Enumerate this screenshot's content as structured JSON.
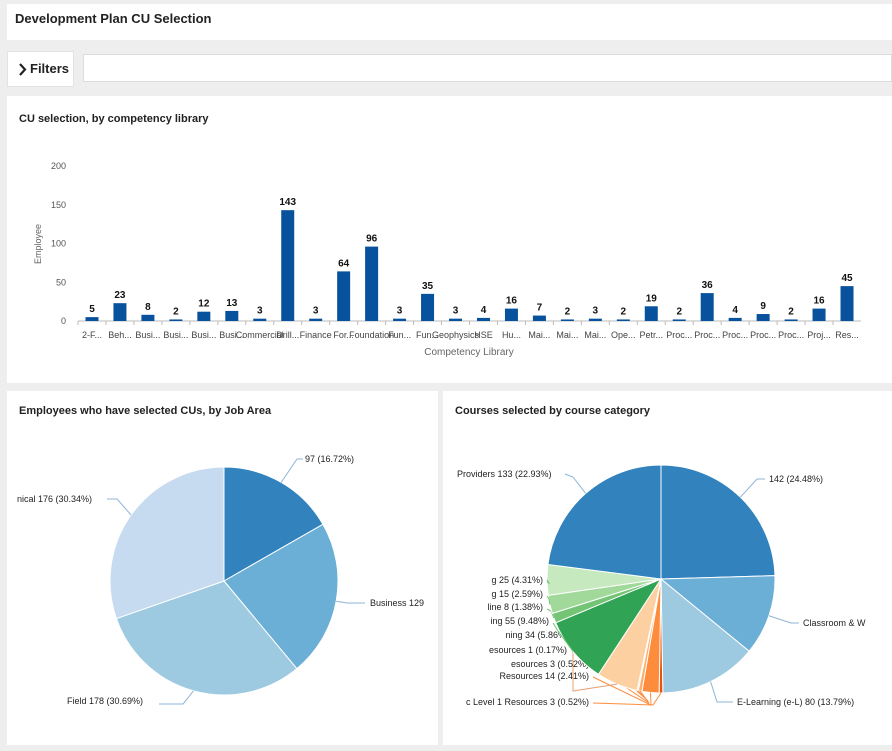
{
  "page": {
    "title": "Development Plan CU Selection"
  },
  "filters": {
    "label": "Filters",
    "placeholder": ""
  },
  "colors": {
    "bar": "#08519c",
    "panel_bg": "#ffffff",
    "page_bg": "#eeeeee"
  },
  "bar_panel": {
    "title": "CU selection, by competency library"
  },
  "job_area_panel": {
    "title": "Employees who have selected CUs, by Job Area"
  },
  "course_panel": {
    "title": "Courses selected by course category"
  },
  "chart_data": [
    {
      "type": "bar",
      "title": "CU selection, by competency library",
      "xlabel": "Competency Library",
      "ylabel": "Employee",
      "ylim": [
        0,
        200
      ],
      "yticks": [
        0,
        50,
        100,
        150,
        200
      ],
      "categories": [
        "2-F...",
        "Beh...",
        "Busi...",
        "Busi...",
        "Busi...",
        "Busi...",
        "Commercial",
        "Drill...",
        "Finance",
        "For...",
        "Foundation",
        "Fun...",
        "Fun...",
        "Geophysics",
        "HSE",
        "Hu...",
        "Mai...",
        "Mai...",
        "Mai...",
        "Ope...",
        "Petr...",
        "Proc...",
        "Proc...",
        "Proc...",
        "Proc...",
        "Proc...",
        "Proj...",
        "Res..."
      ],
      "values": [
        5,
        23,
        8,
        2,
        12,
        13,
        3,
        143,
        3,
        64,
        96,
        3,
        35,
        3,
        4,
        16,
        7,
        2,
        3,
        2,
        19,
        2,
        36,
        4,
        9,
        2,
        16,
        45
      ],
      "grid": false
    },
    {
      "type": "pie",
      "title": "Employees who have selected CUs, by Job Area",
      "labels": [
        "",
        "Business",
        "Field",
        "Technical"
      ],
      "label_texts": [
        "97 (16.72%)",
        "Business 129",
        "Field 178 (30.69%)",
        "nical 176 (30.34%)"
      ],
      "values": [
        97,
        129,
        178,
        176
      ],
      "colors": [
        "#3182bd",
        "#6baed6",
        "#9ecae1",
        "#c6dbef"
      ]
    },
    {
      "type": "pie",
      "title": "Courses selected by course category",
      "labels": [
        "",
        "Classroom & W",
        "E-Learning (e-L)",
        "",
        "",
        "",
        "",
        "",
        "",
        "",
        "",
        "",
        ""
      ],
      "label_texts": [
        "142 (24.48%)",
        "Classroom & W",
        "E-Learning (e-L) 80 (13.79%)",
        "c Level 1 Resources 3 (0.52%)",
        "Resources 14 (2.41%)",
        "esources 3 (0.52%)",
        "esources 1 (0.17%)",
        "ning 34 (5.86%)",
        "ing 55 (9.48%)",
        "line 8 (1.38%)",
        "g 15 (2.59%)",
        "g 25 (4.31%)",
        "Providers 133 (22.93%)"
      ],
      "values": [
        142,
        66,
        80,
        3,
        14,
        3,
        1,
        34,
        55,
        8,
        15,
        25,
        133
      ],
      "colors": [
        "#3182bd",
        "#6baed6",
        "#9ecae1",
        "#e6550d",
        "#fd8d3c",
        "#fdae6b",
        "#fdd0a2",
        "#fdd0a2",
        "#31a354",
        "#74c476",
        "#a1d99b",
        "#c7e9c0",
        "#3182bd"
      ]
    }
  ]
}
